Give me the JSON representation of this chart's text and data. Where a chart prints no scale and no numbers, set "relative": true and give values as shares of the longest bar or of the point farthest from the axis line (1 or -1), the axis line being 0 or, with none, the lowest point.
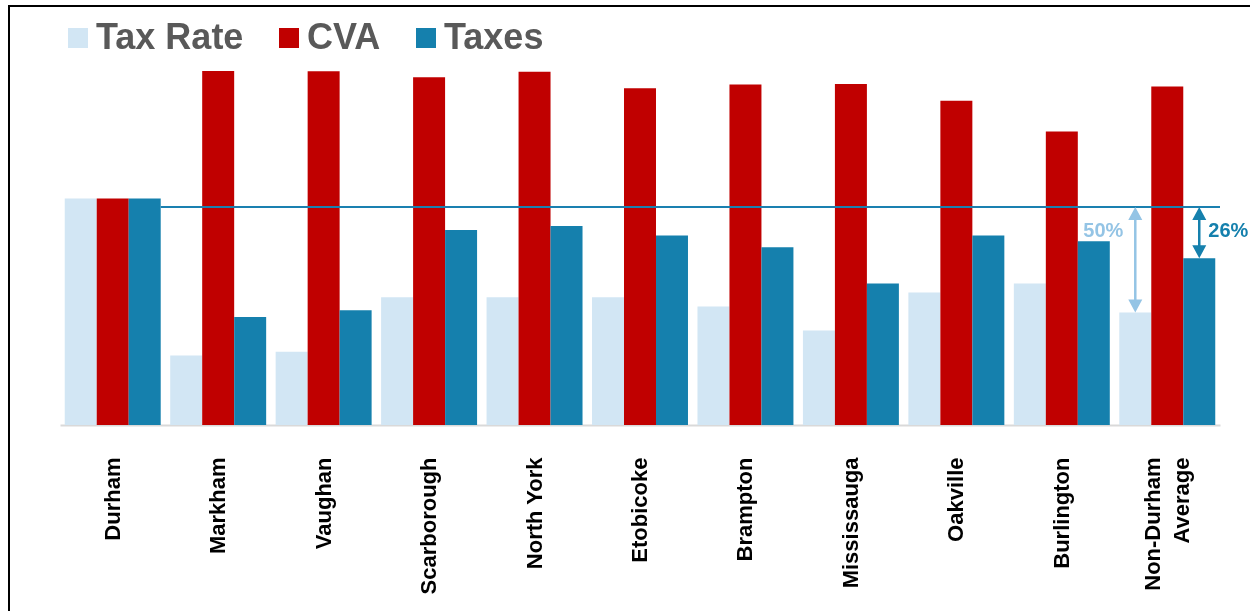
{
  "chart_data": {
    "type": "bar",
    "relative": true,
    "legend": "top left",
    "categories": [
      "Durham",
      "Markham",
      "Vaughan",
      "Scarborough",
      "North York",
      "Etobicoke",
      "Brampton",
      "Mississauga",
      "Oakville",
      "Burlington",
      "Non-Durham Average"
    ],
    "series": [
      {
        "name": "Tax Rate",
        "color": "#d2e6f4",
        "values": [
          0.64,
          0.196,
          0.207,
          0.361,
          0.361,
          0.361,
          0.335,
          0.267,
          0.374,
          0.4,
          0.318
        ]
      },
      {
        "name": "CVA",
        "color": "#c00000",
        "values": [
          0.64,
          1,
          0.999,
          0.982,
          0.998,
          0.951,
          0.962,
          0.963,
          0.916,
          0.829,
          0.956
        ]
      },
      {
        "name": "Taxes",
        "color": "#1580ad",
        "values": [
          0.64,
          0.305,
          0.324,
          0.551,
          0.562,
          0.535,
          0.502,
          0.4,
          0.535,
          0.519,
          0.471
        ]
      }
    ],
    "ref_lines": [
      {
        "axis": "y",
        "value": 0.616,
        "color": "#1a80b0"
      }
    ],
    "annotations": [
      "50%",
      "26%"
    ]
  }
}
